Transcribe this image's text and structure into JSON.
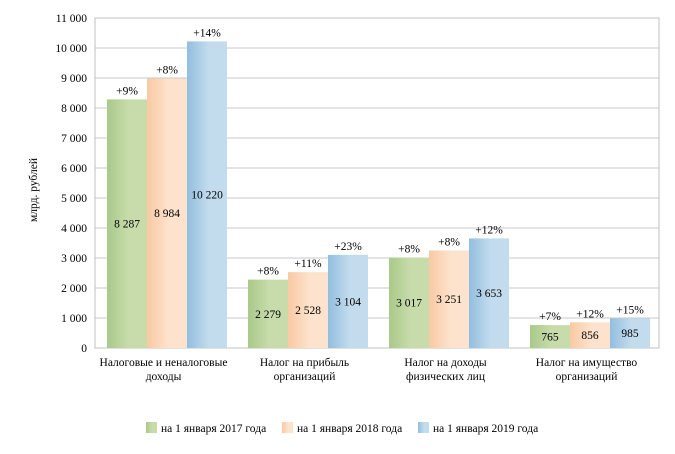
{
  "chart_data": {
    "type": "bar",
    "ylabel": "млрд. рублей",
    "ylim": [
      0,
      11000
    ],
    "ytick_step": 1000,
    "ytick_labels": [
      "0",
      "1 000",
      "2 000",
      "3 000",
      "4 000",
      "5 000",
      "6 000",
      "7 000",
      "8 000",
      "9 000",
      "10 000",
      "11 000"
    ],
    "grid": true,
    "legend_position": "bottom",
    "categories": [
      [
        "Налоговые и неналоговые",
        "доходы"
      ],
      [
        "Налог на прибыль",
        "организаций"
      ],
      [
        "Налог на доходы",
        "физических лиц"
      ],
      [
        "Налог на имущество",
        "организаций"
      ]
    ],
    "series": [
      {
        "name": "на 1 января 2017 года",
        "color_top": "#c8dcab",
        "color_bottom": "#a9c98a",
        "values": [
          8287,
          2279,
          3017,
          765
        ],
        "labels": [
          "8 287",
          "2 279",
          "3 017",
          "765"
        ],
        "growth": [
          "+9%",
          "+8%",
          "+8%",
          "+7%"
        ]
      },
      {
        "name": "на 1 января 2018 года",
        "color_top": "#fde3cd",
        "color_bottom": "#f9c9a3",
        "values": [
          8984,
          2528,
          3251,
          856
        ],
        "labels": [
          "8 984",
          "2 528",
          "3 251",
          "856"
        ],
        "growth": [
          "+8%",
          "+11%",
          "+8%",
          "+12%"
        ]
      },
      {
        "name": "на 1 января 2019 года",
        "color_top": "#c3dced",
        "color_bottom": "#92bedf",
        "values": [
          10220,
          3104,
          3653,
          985
        ],
        "labels": [
          "10 220",
          "3 104",
          "3 653",
          "985"
        ],
        "growth": [
          "+14%",
          "+23%",
          "+12%",
          "+15%"
        ]
      }
    ]
  }
}
